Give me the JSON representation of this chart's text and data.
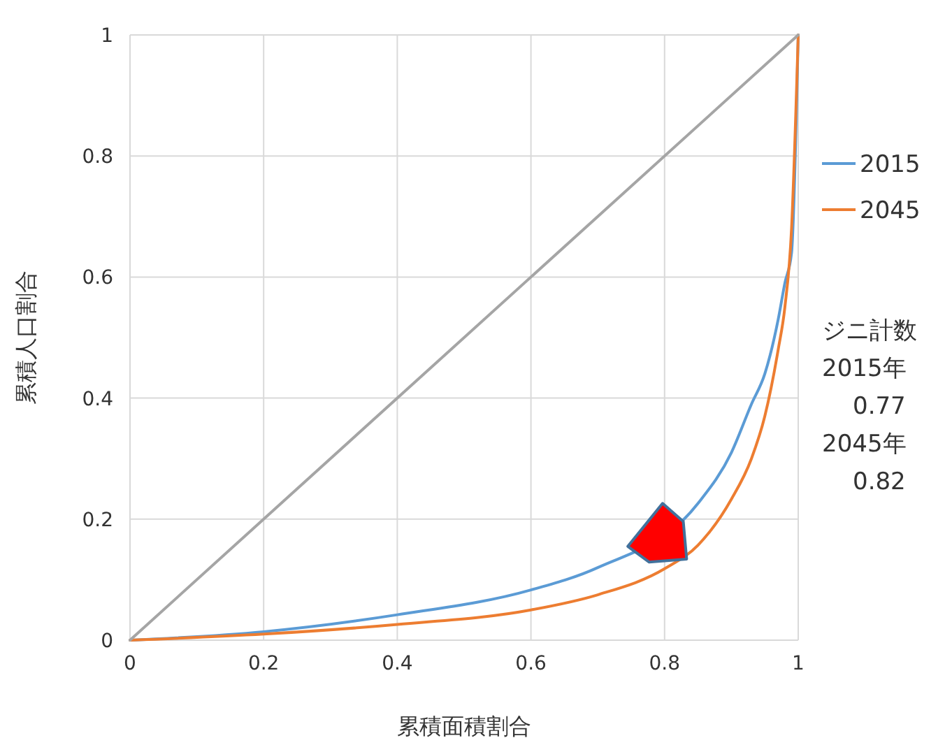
{
  "chart_data": {
    "type": "line",
    "xlabel": "累積面積割合",
    "ylabel": "累積人口割合",
    "xlim": [
      0,
      1
    ],
    "ylim": [
      0,
      1
    ],
    "xticks": [
      0,
      0.2,
      0.4,
      0.6,
      0.8,
      1
    ],
    "yticks": [
      0,
      0.2,
      0.4,
      0.6,
      0.8,
      1
    ],
    "grid": true,
    "legend": "right",
    "marker": "none",
    "line_style": "solid",
    "series": [
      {
        "name": "2015",
        "color": "#5b9bd5",
        "x": [
          0,
          0.2,
          0.4,
          0.6,
          0.7,
          0.85,
          0.9,
          0.93,
          0.95,
          0.97,
          0.98,
          0.99,
          1
        ],
        "values": [
          0,
          0.014,
          0.042,
          0.083,
          0.12,
          0.226,
          0.31,
          0.39,
          0.44,
          0.53,
          0.59,
          0.64,
          1
        ]
      },
      {
        "name": "2045",
        "color": "#ed7d31",
        "x": [
          0,
          0.2,
          0.4,
          0.6,
          0.7,
          0.8,
          0.85,
          0.9,
          0.93,
          0.95,
          0.97,
          0.98,
          0.99,
          1
        ],
        "values": [
          0,
          0.01,
          0.026,
          0.05,
          0.075,
          0.118,
          0.157,
          0.233,
          0.3,
          0.37,
          0.48,
          0.55,
          0.68,
          1
        ]
      },
      {
        "color": "#a5a5a5",
        "x": [
          0,
          1
        ],
        "values": [
          0,
          1
        ]
      }
    ],
    "annotations": [
      "ジニ計数",
      "2015年",
      "0.77",
      "2045年",
      "0.82"
    ]
  }
}
